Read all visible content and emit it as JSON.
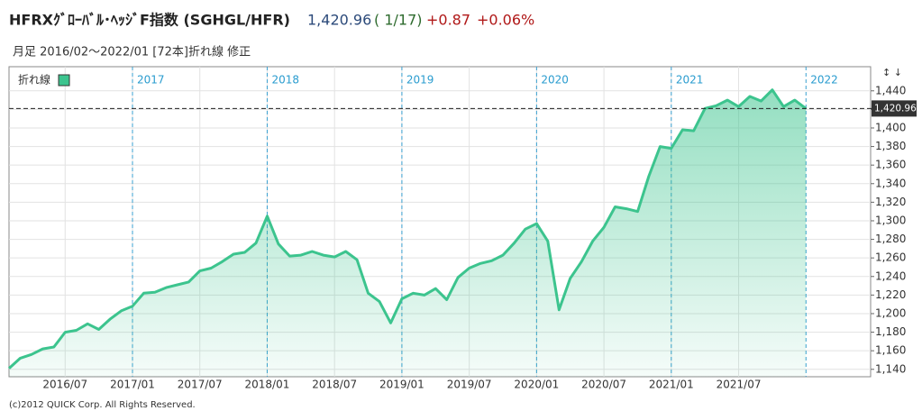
{
  "header": {
    "title": "HFRXｸﾞﾛｰﾊﾞﾙ･ﾍｯｼﾞF指数 (SGHGL/HFR)",
    "date": "( 1/17)",
    "change": "+0.87",
    "change_pct": "+0.06%",
    "subtitle": "月足  2016/02～2022/01 [72本]折れ線 修正"
  },
  "chart_data": {
    "type": "area",
    "x": [
      "2016/02",
      "2016/03",
      "2016/04",
      "2016/05",
      "2016/06",
      "2016/07",
      "2016/08",
      "2016/09",
      "2016/10",
      "2016/11",
      "2016/12",
      "2017/01",
      "2017/02",
      "2017/03",
      "2017/04",
      "2017/05",
      "2017/06",
      "2017/07",
      "2017/08",
      "2017/09",
      "2017/10",
      "2017/11",
      "2017/12",
      "2018/01",
      "2018/02",
      "2018/03",
      "2018/04",
      "2018/05",
      "2018/06",
      "2018/07",
      "2018/08",
      "2018/09",
      "2018/10",
      "2018/11",
      "2018/12",
      "2019/01",
      "2019/02",
      "2019/03",
      "2019/04",
      "2019/05",
      "2019/06",
      "2019/07",
      "2019/08",
      "2019/09",
      "2019/10",
      "2019/11",
      "2019/12",
      "2020/01",
      "2020/02",
      "2020/03",
      "2020/04",
      "2020/05",
      "2020/06",
      "2020/07",
      "2020/08",
      "2020/09",
      "2020/10",
      "2020/11",
      "2020/12",
      "2021/01",
      "2021/02",
      "2021/03",
      "2021/04",
      "2021/05",
      "2021/06",
      "2021/07",
      "2021/08",
      "2021/09",
      "2021/10",
      "2021/11",
      "2021/12",
      "2022/01"
    ],
    "series": [
      {
        "name": "折れ線",
        "color": "#3cc48e",
        "values": [
          1141,
          1152,
          1156,
          1162,
          1164,
          1180,
          1182,
          1189,
          1183,
          1194,
          1203,
          1208,
          1222,
          1223,
          1228,
          1231,
          1234,
          1246,
          1249,
          1256,
          1264,
          1266,
          1276,
          1305,
          1275,
          1262,
          1263,
          1267,
          1263,
          1261,
          1267,
          1258,
          1222,
          1213,
          1190,
          1216,
          1222,
          1220,
          1227,
          1215,
          1239,
          1249,
          1254,
          1257,
          1263,
          1276,
          1291,
          1297,
          1278,
          1204,
          1238,
          1256,
          1278,
          1293,
          1315,
          1313,
          1310,
          1348,
          1380,
          1378,
          1398,
          1397,
          1421,
          1424,
          1430,
          1423,
          1434,
          1429,
          1441,
          1423,
          1430,
          1420.96
        ]
      }
    ],
    "xlim": [
      "2016/02",
      "2022/07"
    ],
    "xticks": [
      "2016/07",
      "2017/01",
      "2017/07",
      "2018/01",
      "2018/07",
      "2019/01",
      "2019/07",
      "2020/01",
      "2020/07",
      "2021/01",
      "2021/07"
    ],
    "year_markers": [
      {
        "value": "2017/01",
        "label": "2017"
      },
      {
        "value": "2018/01",
        "label": "2018"
      },
      {
        "value": "2019/01",
        "label": "2019"
      },
      {
        "value": "2020/01",
        "label": "2020"
      },
      {
        "value": "2021/01",
        "label": "2021"
      },
      {
        "value": "2022/01",
        "label": "2022"
      }
    ],
    "ylim": [
      1132,
      1466
    ],
    "yticks": [
      {
        "value": 1140,
        "label": "1,140"
      },
      {
        "value": 1160,
        "label": "1,160"
      },
      {
        "value": 1180,
        "label": "1,180"
      },
      {
        "value": 1200,
        "label": "1,200"
      },
      {
        "value": 1220,
        "label": "1,220"
      },
      {
        "value": 1240,
        "label": "1,240"
      },
      {
        "value": 1260,
        "label": "1,260"
      },
      {
        "value": 1280,
        "label": "1,280"
      },
      {
        "value": 1300,
        "label": "1,300"
      },
      {
        "value": 1320,
        "label": "1,320"
      },
      {
        "value": 1340,
        "label": "1,340"
      },
      {
        "value": 1360,
        "label": "1,360"
      },
      {
        "value": 1380,
        "label": "1,380"
      },
      {
        "value": 1400,
        "label": "1,400"
      },
      {
        "value": 1420,
        "label": "1,420"
      },
      {
        "value": 1440,
        "label": "1,440"
      }
    ],
    "last": {
      "value": 1420.96,
      "label": "1,420.96"
    },
    "grid": true
  },
  "footer": "(c)2012 QUICK Corp. All Rights Reserved."
}
